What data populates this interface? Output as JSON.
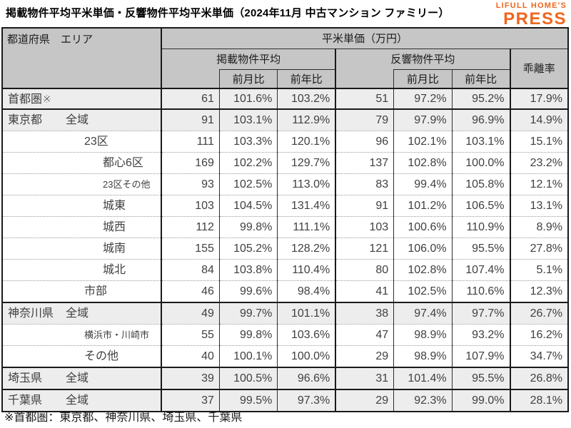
{
  "page": {
    "title": "掲載物件平均平米単価・反響物件平均平米単価（2024年11月 中古マンション ファミリー）",
    "footnote": "※首都圏：東京都、神奈川県、埼玉県、千葉県"
  },
  "logo": {
    "top": "LIFULL HOME'S",
    "bottom": "PRESS"
  },
  "colors": {
    "accent_orange": "#F0661E",
    "header_bg": "#c6c6c6",
    "shade_bg": "#ededed",
    "border_dark": "#1a1a1a",
    "grid_line": "#2e2e2e",
    "dotted_line": "#999999",
    "text": "#404040"
  },
  "table": {
    "header": {
      "area_label": "都道府県　エリア",
      "unit_label": "平米単価（万円）",
      "listed_label": "掲載物件平均",
      "response_label": "反響物件平均",
      "deviation_label": "乖離率",
      "listed_mom_label": "前月比",
      "listed_yoy_label": "前年比",
      "response_mom_label": "前月比",
      "response_yoy_label": "前年比"
    },
    "row_meta": [
      {
        "pref": "首都圏※",
        "area": "",
        "indent": 0,
        "small": false,
        "shade": true,
        "group_start": true
      },
      {
        "pref": "東京都",
        "area": "全域",
        "indent": 1,
        "small": false,
        "shade": true,
        "group_start": true
      },
      {
        "pref": "",
        "area": "23区",
        "indent": 2,
        "small": false,
        "shade": false,
        "group_start": false
      },
      {
        "pref": "",
        "area": "都心6区",
        "indent": 3,
        "small": false,
        "shade": false,
        "group_start": false
      },
      {
        "pref": "",
        "area": "23区その他",
        "indent": 3,
        "small": true,
        "shade": false,
        "group_start": false
      },
      {
        "pref": "",
        "area": "城東",
        "indent": 3,
        "small": false,
        "shade": false,
        "group_start": false
      },
      {
        "pref": "",
        "area": "城西",
        "indent": 3,
        "small": false,
        "shade": false,
        "group_start": false
      },
      {
        "pref": "",
        "area": "城南",
        "indent": 3,
        "small": false,
        "shade": false,
        "group_start": false
      },
      {
        "pref": "",
        "area": "城北",
        "indent": 3,
        "small": false,
        "shade": false,
        "group_start": false
      },
      {
        "pref": "",
        "area": "市部",
        "indent": 2,
        "small": false,
        "shade": false,
        "group_start": false
      },
      {
        "pref": "神奈川県",
        "area": "全域",
        "indent": 1,
        "small": false,
        "shade": true,
        "group_start": true
      },
      {
        "pref": "",
        "area": "横浜市・川崎市",
        "indent": 2,
        "small": true,
        "shade": false,
        "group_start": false
      },
      {
        "pref": "",
        "area": "その他",
        "indent": 2,
        "small": false,
        "shade": false,
        "group_start": false
      },
      {
        "pref": "埼玉県",
        "area": "全域",
        "indent": 1,
        "small": false,
        "shade": true,
        "group_start": true
      },
      {
        "pref": "千葉県",
        "area": "全域",
        "indent": 1,
        "small": false,
        "shade": true,
        "group_start": true
      }
    ]
  },
  "chart_data": {
    "type": "table",
    "title": "掲載物件平均平米単価・反響物件平均平米単価（2024年11月 中古マンション ファミリー）",
    "columns": [
      "都道府県 エリア",
      "掲載物件平均 平米単価(万円)",
      "掲載 前月比",
      "掲載 前年比",
      "反響物件平均 平米単価(万円)",
      "反響 前月比",
      "反響 前年比",
      "乖離率"
    ],
    "rows": [
      [
        "首都圏※",
        61,
        "101.6%",
        "103.2%",
        51,
        "97.2%",
        "95.2%",
        "17.9%"
      ],
      [
        "東京都 全域",
        91,
        "103.1%",
        "112.9%",
        79,
        "97.9%",
        "96.9%",
        "14.9%"
      ],
      [
        "23区",
        111,
        "103.3%",
        "120.1%",
        96,
        "102.1%",
        "103.1%",
        "15.1%"
      ],
      [
        "都心6区",
        169,
        "102.2%",
        "129.7%",
        137,
        "102.8%",
        "100.0%",
        "23.2%"
      ],
      [
        "23区その他",
        93,
        "102.5%",
        "113.0%",
        83,
        "99.4%",
        "105.8%",
        "12.1%"
      ],
      [
        "城東",
        103,
        "104.5%",
        "131.4%",
        91,
        "101.2%",
        "106.5%",
        "13.1%"
      ],
      [
        "城西",
        112,
        "99.8%",
        "111.1%",
        103,
        "100.6%",
        "110.9%",
        "8.9%"
      ],
      [
        "城南",
        155,
        "105.2%",
        "128.2%",
        121,
        "106.0%",
        "95.5%",
        "27.8%"
      ],
      [
        "城北",
        84,
        "103.8%",
        "110.4%",
        80,
        "102.8%",
        "107.4%",
        "5.1%"
      ],
      [
        "市部",
        46,
        "99.6%",
        "98.4%",
        41,
        "102.5%",
        "110.6%",
        "12.3%"
      ],
      [
        "神奈川県 全域",
        49,
        "99.7%",
        "101.1%",
        38,
        "97.4%",
        "97.7%",
        "26.7%"
      ],
      [
        "横浜市・川崎市",
        55,
        "99.8%",
        "103.6%",
        47,
        "98.9%",
        "93.2%",
        "16.2%"
      ],
      [
        "その他",
        40,
        "100.1%",
        "100.0%",
        29,
        "98.9%",
        "107.9%",
        "34.7%"
      ],
      [
        "埼玉県 全域",
        39,
        "100.5%",
        "96.6%",
        31,
        "101.4%",
        "95.5%",
        "26.8%"
      ],
      [
        "千葉県 全域",
        37,
        "99.5%",
        "97.3%",
        29,
        "92.3%",
        "99.0%",
        "28.1%"
      ]
    ]
  }
}
